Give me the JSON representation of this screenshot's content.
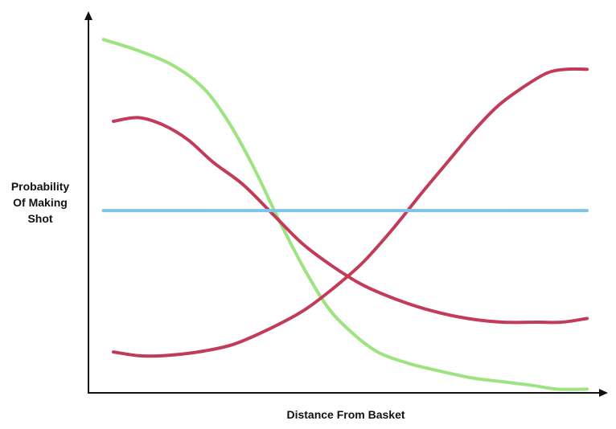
{
  "chart_data": {
    "type": "line",
    "title": "",
    "xlabel": "Distance From Basket",
    "ylabel_lines": [
      "Probability",
      "Of Making",
      "Shot"
    ],
    "xlim": [
      0,
      100
    ],
    "ylim": [
      0,
      100
    ],
    "grid": false,
    "legend": "none",
    "axis_color": "#111111",
    "series": [
      {
        "color": "#9de37f",
        "x": [
          3,
          10,
          17,
          23,
          28,
          33,
          38,
          43,
          48,
          53,
          58,
          64,
          70,
          77,
          83,
          89,
          94,
          100
        ],
        "y": [
          95,
          92,
          88,
          82,
          73,
          61,
          47,
          34,
          23,
          16,
          11,
          8,
          6,
          4,
          3,
          2,
          1,
          1
        ]
      },
      {
        "color": "#c23b58",
        "x": [
          5,
          10,
          15,
          20,
          25,
          31,
          37,
          43,
          49,
          55,
          62,
          69,
          76,
          83,
          90,
          95,
          100
        ],
        "y": [
          73,
          74,
          72,
          68,
          62,
          56,
          48,
          40,
          34,
          29,
          25,
          22,
          20,
          19,
          19,
          19,
          20
        ]
      },
      {
        "color": "#c23b58",
        "x": [
          5,
          10,
          15,
          22,
          29,
          36,
          43,
          49,
          55,
          61,
          67,
          72,
          77,
          82,
          87,
          92,
          96,
          100
        ],
        "y": [
          11,
          10,
          10,
          11,
          13,
          17,
          22,
          28,
          35,
          44,
          54,
          62,
          70,
          77,
          82,
          86,
          87,
          87
        ]
      },
      {
        "color": "#7ec4e6",
        "x": [
          3,
          100
        ],
        "y": [
          49,
          49
        ]
      }
    ]
  }
}
